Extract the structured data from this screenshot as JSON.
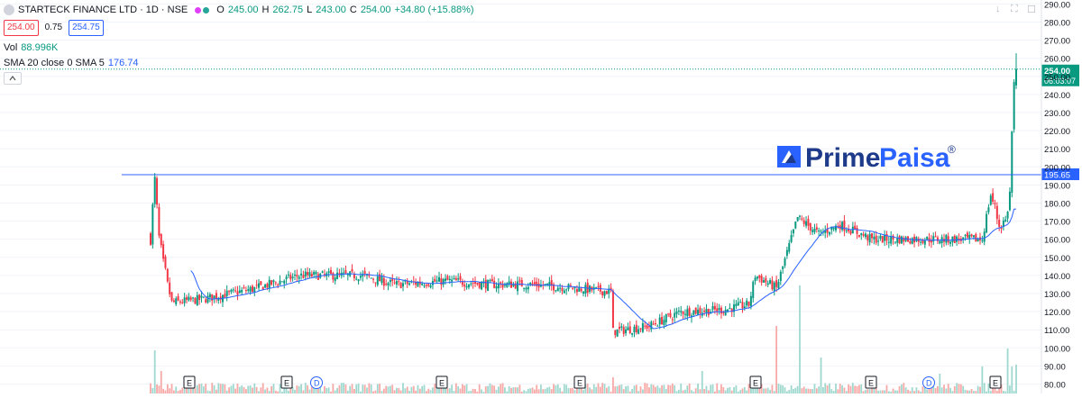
{
  "header": {
    "symbol": "STARTECK FINANCE LTD · 1D · NSE",
    "o_label": "O",
    "o": "245.00",
    "h_label": "H",
    "h": "262.75",
    "l_label": "L",
    "l": "243.00",
    "c_label": "C",
    "c": "254.00",
    "change": "+34.80 (+15.88%)",
    "bid": "254.00",
    "spread": "0.75",
    "ask": "254.75",
    "dot_colors": [
      "#e040fb",
      "#26a69a"
    ]
  },
  "indicators": {
    "vol_label": "Vol",
    "vol_value": "88.996K",
    "sma_label": "SMA 20 close 0 SMA 5",
    "sma_value": "176.74"
  },
  "watermark": {
    "text_dark": "Prime",
    "text_blue": "Paisa",
    "mark": "®"
  },
  "price_tag": {
    "price": "254.00",
    "countdown": "06:03:07",
    "color": "#089981"
  },
  "line_tag": {
    "price": "195.65",
    "color": "#2962ff"
  },
  "colors": {
    "up": "#089981",
    "down": "#f23645",
    "sma": "#2962ff",
    "vol_up": "#9fd8cf",
    "vol_down": "#f7a9a7"
  },
  "events": [
    {
      "label": "E",
      "type": "earnings"
    },
    {
      "label": "E",
      "type": "earnings"
    },
    {
      "label": "D",
      "type": "dividend"
    },
    {
      "label": "E",
      "type": "earnings"
    },
    {
      "label": "E",
      "type": "earnings"
    },
    {
      "label": "E",
      "type": "earnings"
    },
    {
      "label": "E",
      "type": "earnings"
    },
    {
      "label": "D",
      "type": "dividend"
    },
    {
      "label": "E",
      "type": "earnings"
    }
  ],
  "chart_data": {
    "type": "candlestick",
    "title": "STARTECK FINANCE LTD · 1D · NSE",
    "y_axis": {
      "ticks": [
        80,
        90,
        100,
        110,
        120,
        130,
        140,
        150,
        160,
        170,
        180,
        190,
        200,
        210,
        220,
        230,
        240,
        250,
        260,
        270,
        280,
        290
      ],
      "ylim": [
        76,
        292
      ],
      "position": "right",
      "unit": ""
    },
    "grid": true,
    "horizontal_line": 195.65,
    "last_price": 254.0,
    "price_path_waypoints": [
      {
        "bar": 0,
        "close": 162
      },
      {
        "bar": 2,
        "close": 192
      },
      {
        "bar": 4,
        "close": 160
      },
      {
        "bar": 6,
        "close": 145
      },
      {
        "bar": 10,
        "close": 125
      },
      {
        "bar": 25,
        "close": 127
      },
      {
        "bar": 50,
        "close": 133
      },
      {
        "bar": 70,
        "close": 140
      },
      {
        "bar": 85,
        "close": 140
      },
      {
        "bar": 100,
        "close": 140
      },
      {
        "bar": 115,
        "close": 135
      },
      {
        "bar": 140,
        "close": 137
      },
      {
        "bar": 160,
        "close": 135
      },
      {
        "bar": 180,
        "close": 135
      },
      {
        "bar": 200,
        "close": 133
      },
      {
        "bar": 217,
        "close": 131
      },
      {
        "bar": 218,
        "close": 109
      },
      {
        "bar": 235,
        "close": 112
      },
      {
        "bar": 250,
        "close": 120
      },
      {
        "bar": 270,
        "close": 121
      },
      {
        "bar": 282,
        "close": 124
      },
      {
        "bar": 285,
        "close": 140
      },
      {
        "bar": 295,
        "close": 133
      },
      {
        "bar": 305,
        "close": 172
      },
      {
        "bar": 315,
        "close": 163
      },
      {
        "bar": 325,
        "close": 168
      },
      {
        "bar": 340,
        "close": 160
      },
      {
        "bar": 360,
        "close": 160
      },
      {
        "bar": 380,
        "close": 160
      },
      {
        "bar": 392,
        "close": 160
      },
      {
        "bar": 396,
        "close": 185
      },
      {
        "bar": 400,
        "close": 168
      },
      {
        "bar": 403,
        "close": 170
      },
      {
        "bar": 405,
        "close": 185
      },
      {
        "bar": 406,
        "close": 219
      },
      {
        "bar": 407,
        "close": 245
      },
      {
        "bar": 408,
        "close": 254
      }
    ],
    "last_candle": {
      "open": 245.0,
      "high": 262.75,
      "low": 243.0,
      "close": 254.0
    },
    "volume_last": "88.996K",
    "sma_last": 176.74
  }
}
